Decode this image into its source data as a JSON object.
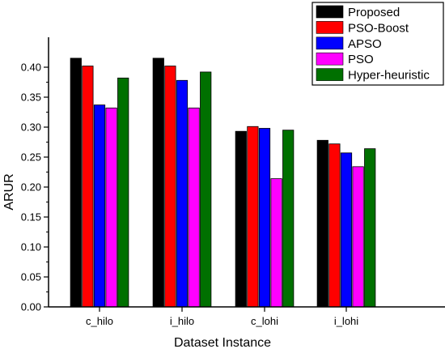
{
  "chart_data": {
    "type": "bar",
    "title": "",
    "xlabel": "Dataset Instance",
    "ylabel": "ARUR",
    "ylim": [
      0,
      0.45
    ],
    "yticks": [
      "0.00",
      "0.05",
      "0.10",
      "0.15",
      "0.20",
      "0.25",
      "0.30",
      "0.35",
      "0.40"
    ],
    "categories": [
      "c_hilo",
      "i_hilo",
      "c_lohi",
      "i_lohi"
    ],
    "legend_position": "top-right",
    "grid": false,
    "series": [
      {
        "name": "Proposed",
        "color": "#000000",
        "values": [
          0.415,
          0.415,
          0.293,
          0.278
        ]
      },
      {
        "name": "PSO-Boost",
        "color": "#ff0000",
        "values": [
          0.402,
          0.402,
          0.301,
          0.272
        ]
      },
      {
        "name": "APSO",
        "color": "#0000ff",
        "values": [
          0.337,
          0.378,
          0.298,
          0.257
        ]
      },
      {
        "name": "PSO",
        "color": "#ff00ff",
        "values": [
          0.332,
          0.332,
          0.214,
          0.234
        ]
      },
      {
        "name": "Hyper-heuristic",
        "color": "#007000",
        "values": [
          0.382,
          0.392,
          0.295,
          0.264
        ]
      }
    ]
  }
}
